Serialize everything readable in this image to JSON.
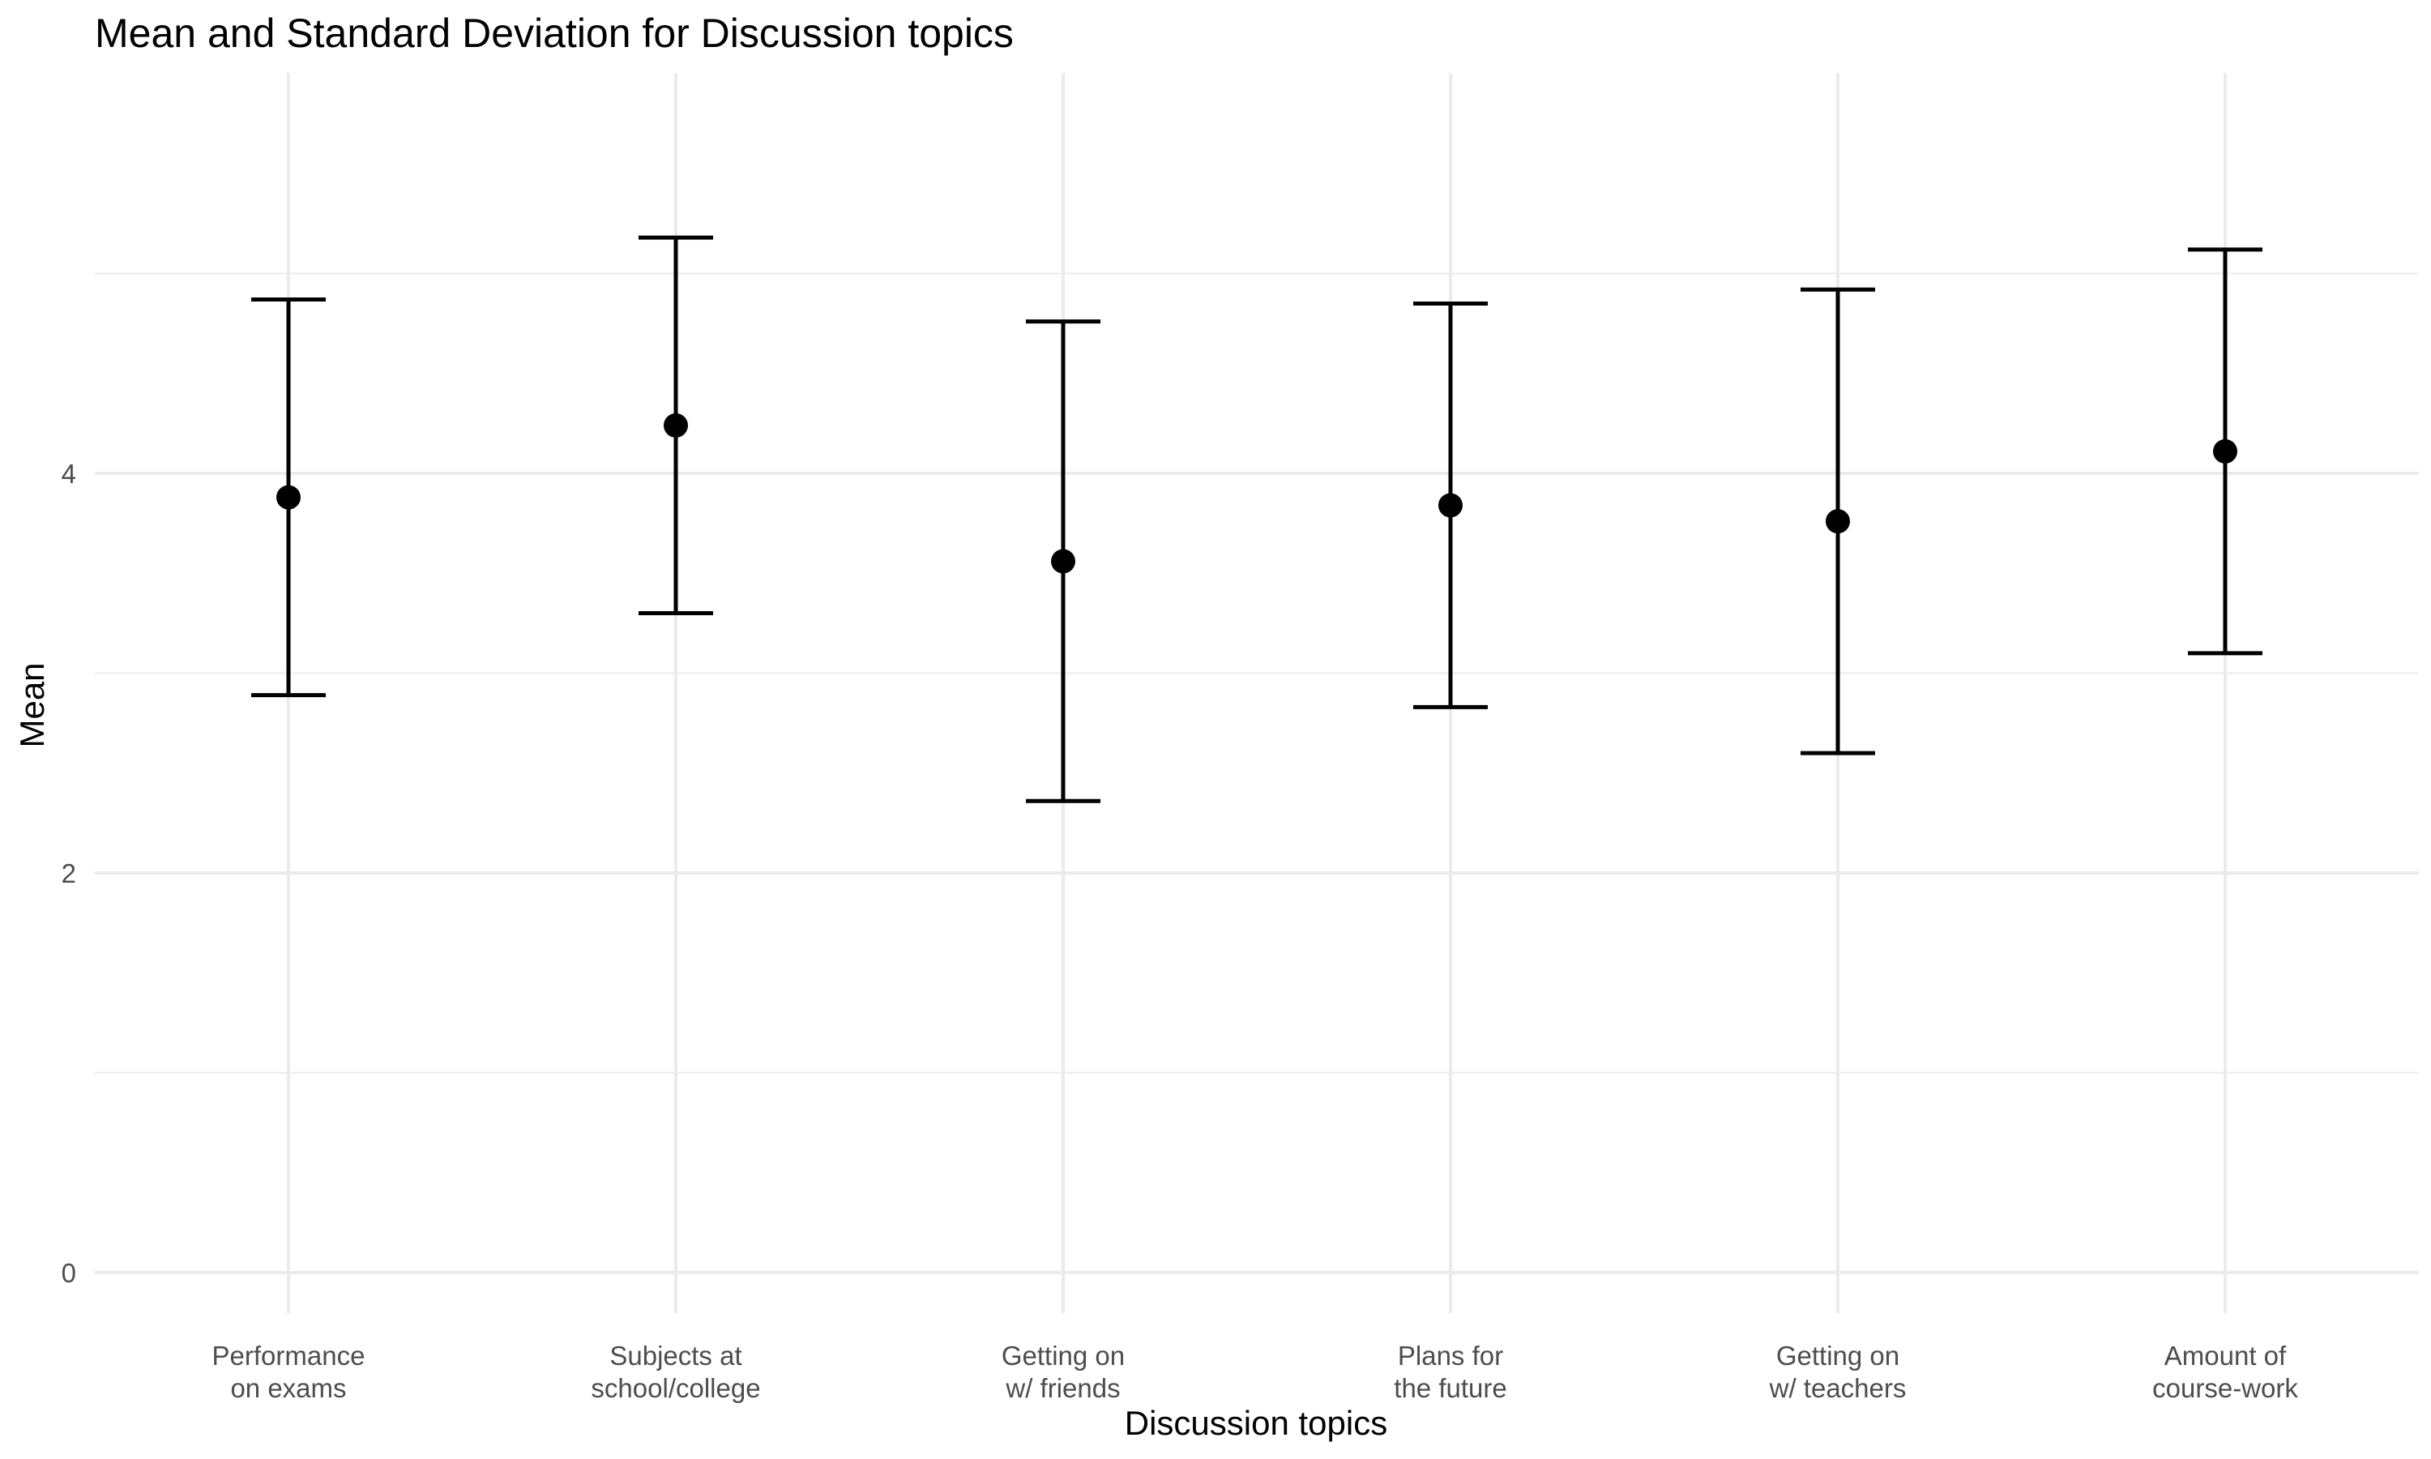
{
  "chart_data": {
    "type": "errorbar",
    "title": "Mean and Standard Deviation for Discussion topics",
    "xlabel": "Discussion topics",
    "ylabel": "Mean",
    "ylim": [
      -0.25,
      6.0
    ],
    "y_ticks": [
      0,
      2,
      4
    ],
    "y_minor_ticks": [
      1,
      3,
      5
    ],
    "grid": true,
    "categories": [
      [
        "Performance",
        "on exams"
      ],
      [
        "Subjects at",
        "school/college"
      ],
      [
        "Getting on",
        "w/ friends"
      ],
      [
        "Plans for",
        "the future"
      ],
      [
        "Getting on",
        "w/ teachers"
      ],
      [
        "Amount of",
        "course-work"
      ]
    ],
    "means": [
      3.88,
      4.24,
      3.56,
      3.84,
      3.76,
      4.11
    ],
    "sd": [
      0.99,
      0.94,
      1.2,
      1.01,
      1.16,
      1.01
    ],
    "point_color": "#000000",
    "errorbar_color": "#000000",
    "grid_color": "#ebebeb"
  }
}
